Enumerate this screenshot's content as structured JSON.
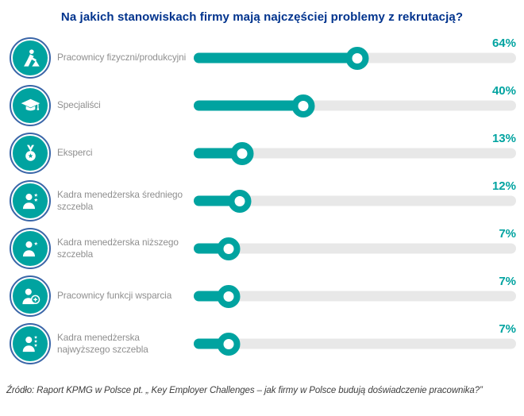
{
  "title": "Na jakich stanowiskach firmy mają najczęściej problemy z rekrutacją?",
  "source": "Źródło: Raport KPMG w Polsce pt. „ Key Employer Challenges – jak firmy w Polsce budują doświadczenie pracownika?”",
  "colors": {
    "accent_teal": "#00a3a0",
    "title_navy": "#00338d",
    "track_gray": "#e8e8e8",
    "label_gray": "#8f8f8f",
    "icon_ring_blue": "#3a66a8"
  },
  "chart_data": {
    "type": "bar",
    "orientation": "horizontal",
    "title": "Na jakich stanowiskach firmy mają najczęściej problemy z rekrutacją?",
    "categories": [
      "Pracownicy fizyczni/produkcyjni",
      "Specjaliści",
      "Eksperci",
      "Kadra menedżerska średniego szczebla",
      "Kadra menedżerska niższego szczebla",
      "Pracownicy funkcji wsparcia",
      "Kadra menedżerska najwyższego szczebla"
    ],
    "values": [
      64,
      40,
      13,
      12,
      7,
      7,
      7
    ],
    "unit": "%",
    "xlim": [
      0,
      100
    ],
    "grid": false,
    "legend": "none",
    "value_labels": [
      "64%",
      "40%",
      "13%",
      "12%",
      "7%",
      "7%",
      "7%"
    ],
    "source": "Źródło: Raport KPMG w Polsce pt. „ Key Employer Challenges – jak firmy w Polsce budują doświadczenie pracownika?”"
  },
  "rows": [
    {
      "label": "Pracownicy fizyczni/produkcyjni",
      "value": 64,
      "value_label": "64%",
      "icon": "worker-digging-icon"
    },
    {
      "label": "Specjaliści",
      "value": 40,
      "value_label": "40%",
      "icon": "graduation-cap-icon"
    },
    {
      "label": "Eksperci",
      "value": 13,
      "value_label": "13%",
      "icon": "medal-star-icon"
    },
    {
      "label": "Kadra menedżerska średniego szczebla",
      "value": 12,
      "value_label": "12%",
      "icon": "manager-two-stars-icon"
    },
    {
      "label": "Kadra menedżerska niższego szczebla",
      "value": 7,
      "value_label": "7%",
      "icon": "manager-one-star-icon"
    },
    {
      "label": "Pracownicy funkcji wsparcia",
      "value": 7,
      "value_label": "7%",
      "icon": "person-add-icon"
    },
    {
      "label": "Kadra menedżerska najwyższego szczebla",
      "value": 7,
      "value_label": "7%",
      "icon": "manager-three-stars-icon"
    }
  ]
}
